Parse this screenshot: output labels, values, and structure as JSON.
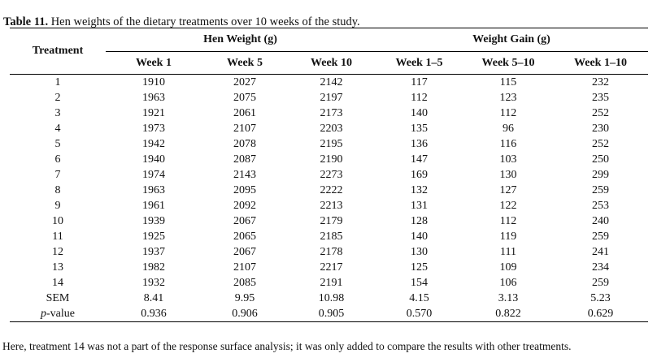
{
  "title": {
    "label": "Table 11.",
    "text": " Hen weights of the dietary treatments over 10 weeks of the study."
  },
  "table": {
    "col1_header": "Treatment",
    "groups": [
      {
        "label": "Hen Weight (g)",
        "columns": [
          "Week 1",
          "Week 5",
          "Week 10"
        ]
      },
      {
        "label": "Weight Gain (g)",
        "columns": [
          "Week 1–5",
          "Week 5–10",
          "Week 1–10"
        ]
      }
    ],
    "rows": [
      {
        "label": "1",
        "values": [
          "1910",
          "2027",
          "2142",
          "117",
          "115",
          "232"
        ]
      },
      {
        "label": "2",
        "values": [
          "1963",
          "2075",
          "2197",
          "112",
          "123",
          "235"
        ]
      },
      {
        "label": "3",
        "values": [
          "1921",
          "2061",
          "2173",
          "140",
          "112",
          "252"
        ]
      },
      {
        "label": "4",
        "values": [
          "1973",
          "2107",
          "2203",
          "135",
          "96",
          "230"
        ]
      },
      {
        "label": "5",
        "values": [
          "1942",
          "2078",
          "2195",
          "136",
          "116",
          "252"
        ]
      },
      {
        "label": "6",
        "values": [
          "1940",
          "2087",
          "2190",
          "147",
          "103",
          "250"
        ]
      },
      {
        "label": "7",
        "values": [
          "1974",
          "2143",
          "2273",
          "169",
          "130",
          "299"
        ]
      },
      {
        "label": "8",
        "values": [
          "1963",
          "2095",
          "2222",
          "132",
          "127",
          "259"
        ]
      },
      {
        "label": "9",
        "values": [
          "1961",
          "2092",
          "2213",
          "131",
          "122",
          "253"
        ]
      },
      {
        "label": "10",
        "values": [
          "1939",
          "2067",
          "2179",
          "128",
          "112",
          "240"
        ]
      },
      {
        "label": "11",
        "values": [
          "1925",
          "2065",
          "2185",
          "140",
          "119",
          "259"
        ]
      },
      {
        "label": "12",
        "values": [
          "1937",
          "2067",
          "2178",
          "130",
          "111",
          "241"
        ]
      },
      {
        "label": "13",
        "values": [
          "1982",
          "2107",
          "2217",
          "125",
          "109",
          "234"
        ]
      },
      {
        "label": "14",
        "values": [
          "1932",
          "2085",
          "2191",
          "154",
          "106",
          "259"
        ]
      },
      {
        "label": "SEM",
        "values": [
          "8.41",
          "9.95",
          "10.98",
          "4.15",
          "3.13",
          "5.23"
        ]
      },
      {
        "label": "p-value",
        "italic_first": true,
        "values": [
          "0.936",
          "0.906",
          "0.905",
          "0.570",
          "0.822",
          "0.629"
        ]
      }
    ]
  },
  "footnote": "Here, treatment 14 was not a part of the response surface analysis; it was only added to compare the results with other treatments."
}
